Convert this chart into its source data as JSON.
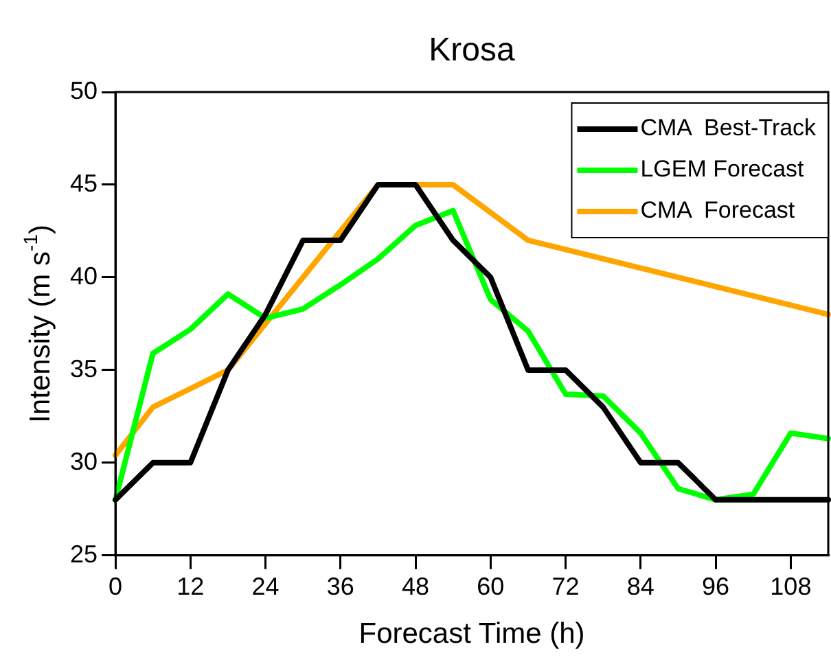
{
  "chart_data": {
    "type": "line",
    "title": "Krosa",
    "xlabel": "Forecast Time (h)",
    "ylabel": "Intensity (m s$^{-1}$)",
    "x": [
      0,
      6,
      12,
      18,
      24,
      30,
      36,
      42,
      48,
      54,
      60,
      66,
      72,
      78,
      84,
      90,
      96,
      102,
      108,
      114
    ],
    "series": [
      {
        "name": "CMA  Best-Track",
        "color": "#000000",
        "values": [
          28,
          30,
          30,
          35,
          38,
          42,
          42,
          45,
          45,
          42,
          40,
          35,
          35,
          33,
          30,
          30,
          28,
          28,
          28,
          28
        ]
      },
      {
        "name": "LGEM Forecast",
        "color": "#00ff00",
        "values": [
          28,
          35.9,
          37.2,
          39.1,
          37.8,
          38.3,
          39.6,
          41,
          42.8,
          43.6,
          38.8,
          37.1,
          33.7,
          33.6,
          31.6,
          28.6,
          28,
          28.3,
          31.6,
          31.3
        ]
      },
      {
        "name": "CMA  Forecast",
        "color": "#ffa500",
        "x": [
          0,
          6,
          18,
          42,
          54,
          66,
          114
        ],
        "values": [
          30.4,
          33,
          35,
          45,
          45,
          42,
          38
        ]
      }
    ],
    "xlim": [
      0,
      114
    ],
    "xticks": [
      0,
      12,
      24,
      36,
      48,
      60,
      72,
      84,
      96,
      108
    ],
    "ylim": [
      25,
      50
    ],
    "yticks": [
      25,
      30,
      35,
      40,
      45,
      50
    ],
    "grid": false,
    "legend": "top right",
    "marker": "none",
    "line_style": "solid"
  }
}
